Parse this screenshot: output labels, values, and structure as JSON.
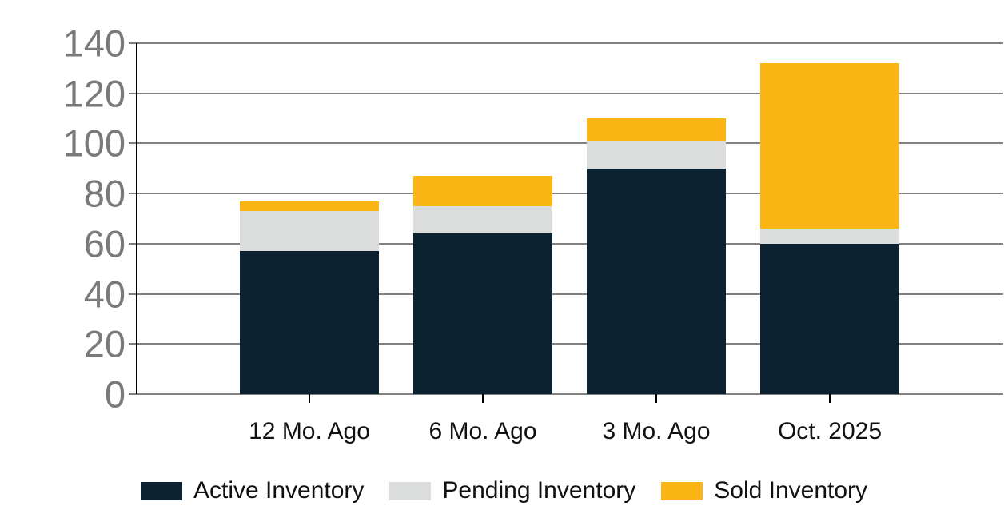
{
  "page": {
    "background": "#ffffff"
  },
  "chart_data": {
    "type": "bar",
    "stacked": true,
    "title": "",
    "xlabel": "",
    "ylabel": "",
    "categories": [
      "12 Mo. Ago",
      "6 Mo. Ago",
      "3 Mo. Ago",
      "Oct. 2025"
    ],
    "series": [
      {
        "name": "Active Inventory",
        "color": "#0d2231",
        "values": [
          57,
          64,
          90,
          60
        ]
      },
      {
        "name": "Pending Inventory",
        "color": "#dbdcdc",
        "values": [
          16,
          11,
          11,
          6
        ]
      },
      {
        "name": "Sold Inventory",
        "color": "#fbb616",
        "values": [
          4,
          12,
          9,
          66
        ]
      }
    ],
    "stack_totals": [
      77,
      87,
      110,
      132
    ],
    "ylim": [
      0,
      140
    ],
    "yticks": [
      0,
      20,
      40,
      60,
      80,
      100,
      120,
      140
    ],
    "grid": "horizontal",
    "legend_position": "bottom",
    "axis_colors": {
      "grid_line": "#000000",
      "tick_label": "#7a7a7a",
      "category_label": "#111111"
    }
  }
}
